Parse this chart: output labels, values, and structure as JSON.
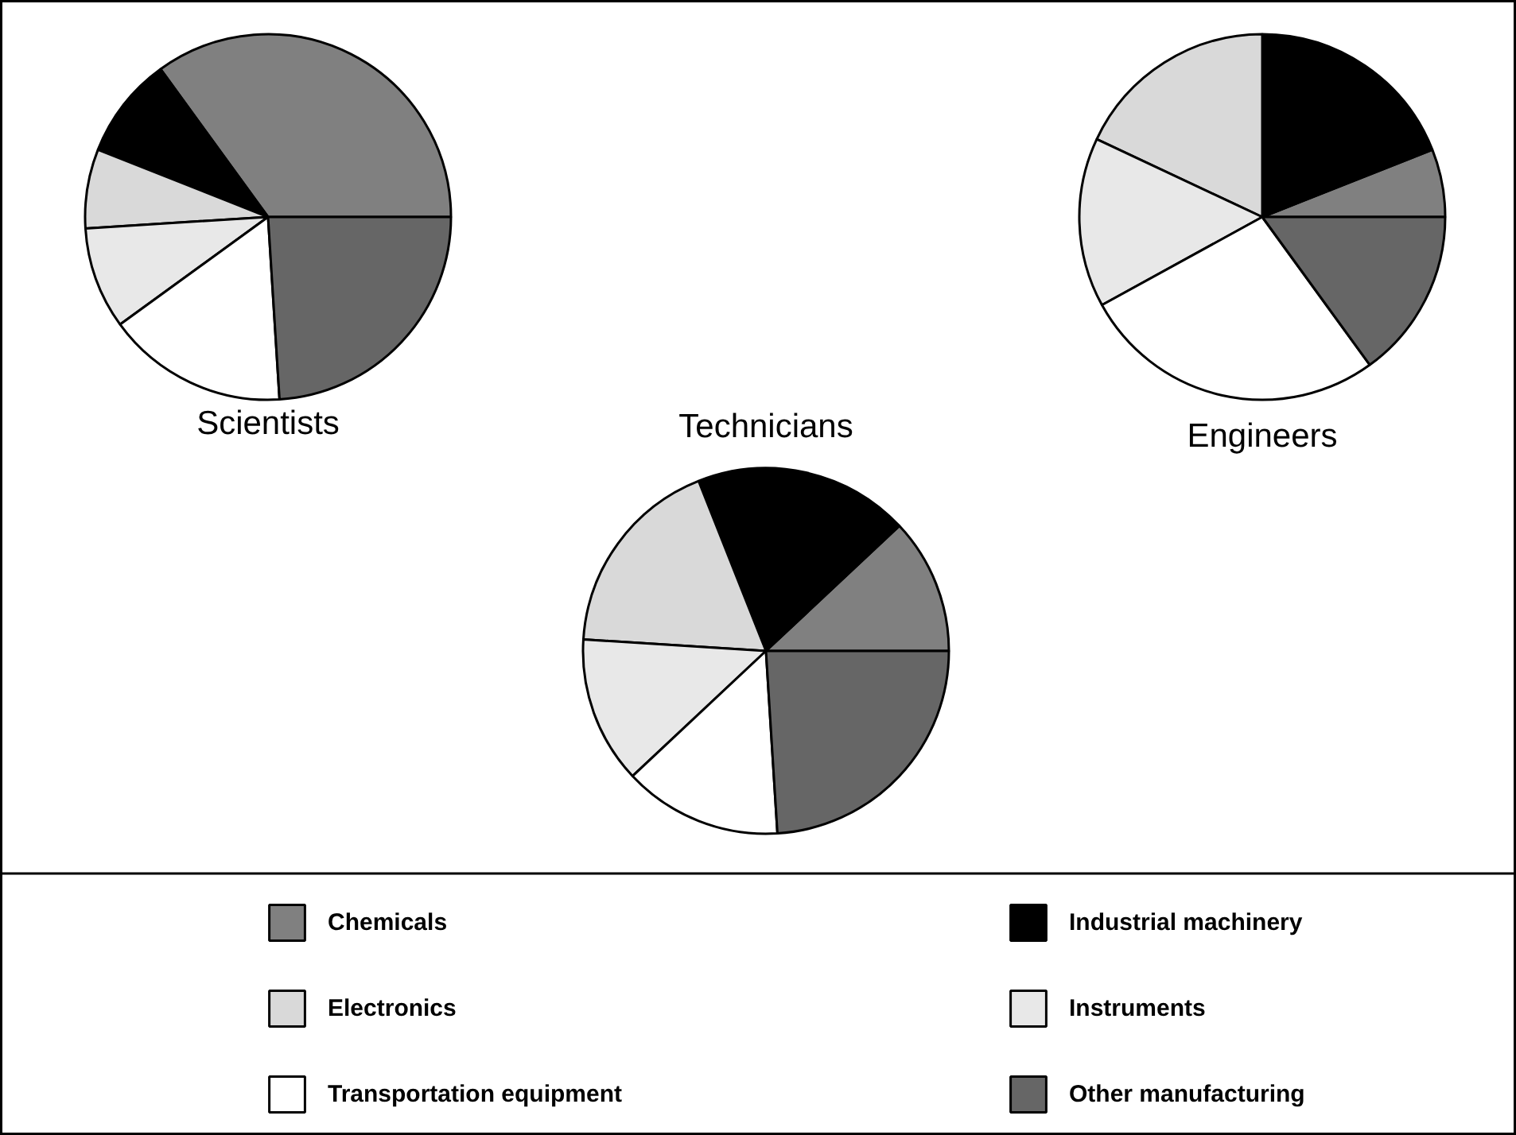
{
  "chart_data": {
    "type": "pie",
    "categories": [
      "Chemicals",
      "Industrial machinery",
      "Electronics",
      "Instruments",
      "Transportation equipment",
      "Other manufacturing"
    ],
    "colors": [
      "#808080",
      "#000000",
      "#d9d9d9",
      "#e8e8e8",
      "#ffffff",
      "#666666"
    ],
    "legend": "bottom",
    "series": [
      {
        "name": "Scientists",
        "values": [
          35,
          9,
          7,
          9,
          16,
          24
        ]
      },
      {
        "name": "Technicians",
        "values": [
          12,
          19,
          18,
          13,
          14,
          24
        ]
      },
      {
        "name": "Engineers",
        "values": [
          6,
          19,
          18,
          15,
          27,
          15
        ]
      }
    ]
  }
}
